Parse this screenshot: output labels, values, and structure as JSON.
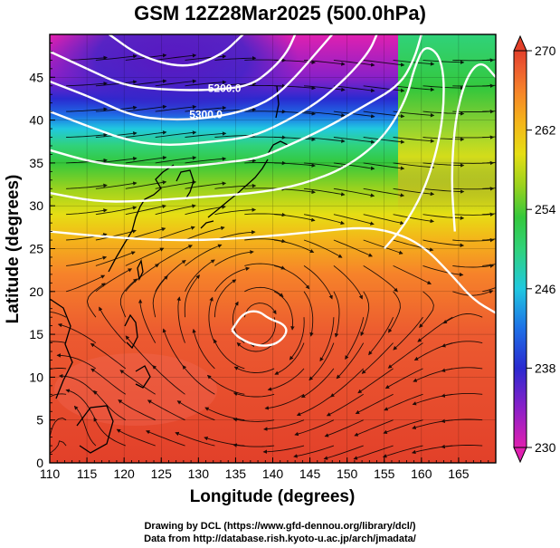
{
  "title": "GSM 12Z28Mar2025 (500.0hPa)",
  "credits": {
    "line1": "Drawing by DCL (https://www.gfd-dennou.org/library/dcl/)",
    "line2": "Data from http://database.rish.kyoto-u.ac.jp/arch/jmadata/"
  },
  "chart_data": {
    "type": "heatmap",
    "xlabel": "Longitude (degrees)",
    "ylabel": "Latitude  (degrees)",
    "xlim": [
      110,
      170
    ],
    "ylim": [
      0,
      50
    ],
    "x_ticks": [
      "110",
      "115",
      "120",
      "125",
      "130",
      "135",
      "140",
      "145",
      "150",
      "155",
      "160",
      "165"
    ],
    "y_ticks": [
      "0",
      "5",
      "10",
      "15",
      "20",
      "25",
      "30",
      "35",
      "40",
      "45"
    ],
    "colorbar": {
      "min": 230,
      "max": 270,
      "tick_labels": [
        "230",
        "238",
        "246",
        "254",
        "262",
        "270"
      ],
      "colors": [
        "#e020b0",
        "#8a20c8",
        "#2a2ad0",
        "#1e70e6",
        "#20c8e0",
        "#30d27a",
        "#34c83c",
        "#9ad21e",
        "#e6de14",
        "#f4b41a",
        "#f6822a",
        "#ec5a30",
        "#e2402a"
      ]
    },
    "contour_labels": [
      {
        "text": "5200.0",
        "lon": 133.5,
        "lat": 43.3
      },
      {
        "text": "5300.0",
        "lon": 131.0,
        "lat": 40.2
      }
    ],
    "height_contours": [
      {
        "level": "5100",
        "points": [
          [
            118,
            50
          ],
          [
            122,
            47.5
          ],
          [
            128,
            46
          ],
          [
            133,
            47.5
          ],
          [
            136,
            50
          ]
        ]
      },
      {
        "level": "5200",
        "points": [
          [
            110,
            48
          ],
          [
            115,
            46
          ],
          [
            120,
            44
          ],
          [
            126,
            43.5
          ],
          [
            132,
            43.5
          ],
          [
            137,
            44
          ],
          [
            140,
            46
          ],
          [
            142,
            48
          ],
          [
            143,
            50
          ]
        ]
      },
      {
        "level": "5300",
        "points": [
          [
            110,
            44.5
          ],
          [
            116,
            42.5
          ],
          [
            121,
            40.5
          ],
          [
            126,
            40
          ],
          [
            131,
            40.2
          ],
          [
            136,
            41
          ],
          [
            140,
            42.5
          ],
          [
            143,
            45
          ],
          [
            146,
            48
          ],
          [
            148,
            50
          ]
        ]
      },
      {
        "level": "5400",
        "points": [
          [
            110,
            41
          ],
          [
            116,
            39
          ],
          [
            121,
            37.5
          ],
          [
            126,
            37
          ],
          [
            132,
            37.5
          ],
          [
            137,
            38
          ],
          [
            141,
            39.5
          ],
          [
            146,
            42
          ],
          [
            150,
            45
          ],
          [
            153,
            48
          ],
          [
            154,
            50
          ]
        ]
      },
      {
        "level": "5500",
        "points": [
          [
            110,
            36.5
          ],
          [
            116,
            35
          ],
          [
            122,
            34.5
          ],
          [
            128,
            34.5
          ],
          [
            133,
            35
          ],
          [
            138,
            35.5
          ],
          [
            142,
            37
          ],
          [
            147,
            39
          ],
          [
            152,
            41.5
          ],
          [
            157,
            44
          ],
          [
            159,
            47
          ],
          [
            160,
            50
          ]
        ]
      },
      {
        "level": "5600",
        "points": [
          [
            110,
            31.5
          ],
          [
            116,
            30.5
          ],
          [
            122,
            30.5
          ],
          [
            130,
            31
          ],
          [
            138,
            31.5
          ],
          [
            144,
            32.5
          ],
          [
            150,
            34.5
          ],
          [
            155,
            38
          ],
          [
            158,
            42.5
          ],
          [
            159,
            46
          ],
          [
            160.5,
            49
          ],
          [
            163,
            47
          ],
          [
            163,
            40
          ],
          [
            161,
            33
          ],
          [
            158,
            28
          ],
          [
            155,
            25
          ]
        ]
      },
      {
        "level": "5700",
        "points": [
          [
            110,
            27
          ],
          [
            116,
            26.5
          ],
          [
            124,
            26
          ],
          [
            132,
            26
          ],
          [
            140,
            26.5
          ],
          [
            146,
            27
          ],
          [
            152,
            27.5
          ],
          [
            156,
            27
          ],
          [
            160,
            25.5
          ],
          [
            164,
            22
          ],
          [
            167,
            19
          ],
          [
            170,
            17.5
          ]
        ]
      },
      {
        "level": "5750",
        "points": [
          [
            164.5,
            27
          ],
          [
            164,
            33
          ],
          [
            164.5,
            40
          ],
          [
            166,
            45
          ],
          [
            168,
            47
          ],
          [
            170,
            45
          ]
        ]
      },
      {
        "level": "5850",
        "points": [
          [
            134.5,
            15.5
          ],
          [
            136,
            17.5
          ],
          [
            138,
            17.8
          ],
          [
            139.5,
            16.8
          ],
          [
            141.5,
            16.2
          ],
          [
            142,
            15.2
          ],
          [
            140.5,
            13.8
          ],
          [
            138,
            13.6
          ],
          [
            135.5,
            14.5
          ],
          [
            134.5,
            15.5
          ]
        ]
      }
    ]
  }
}
